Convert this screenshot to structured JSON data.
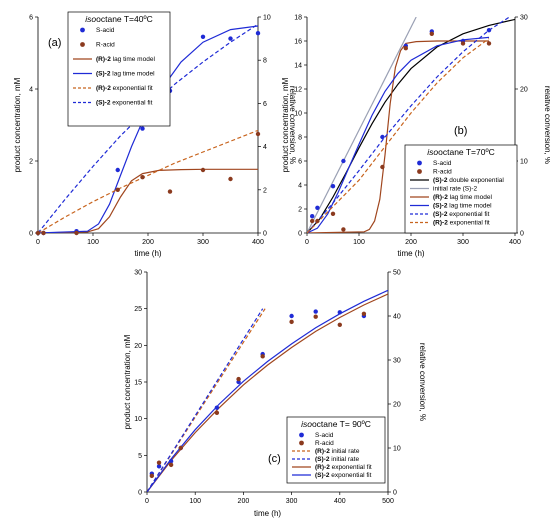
{
  "chart_data": [
    {
      "type": "scatter",
      "panel_label": "(a)",
      "legend": {
        "title_italic": "iso",
        "title_rest": "octane T=40ºC",
        "entries": [
          {
            "label": "S-acid",
            "kind": "point",
            "color": "#1f2bd6"
          },
          {
            "label": "R-acid",
            "kind": "point",
            "color": "#8b3a1e"
          },
          {
            "label_bold": "(R)-2",
            "label": " lag time model",
            "kind": "line",
            "color": "#a0461e",
            "dash": false
          },
          {
            "label_bold": "(S)-2",
            "label": " lag time model",
            "kind": "line",
            "color": "#1f2bd6",
            "dash": false
          },
          {
            "label_bold": "(R)-2",
            "label": " exponential fit",
            "kind": "line",
            "color": "#c8641e",
            "dash": true
          },
          {
            "label_bold": "(S)-2",
            "label": " exponential fit",
            "kind": "line",
            "color": "#1f2bd6",
            "dash": true
          }
        ]
      },
      "xlabel": "time (h)",
      "ylabel": "product concentration, mM",
      "y2label": "relative conversion, %",
      "xlim": [
        0,
        400
      ],
      "ylim": [
        0,
        6
      ],
      "y2lim": [
        0,
        10
      ],
      "xticks": [
        0,
        100,
        200,
        300,
        400
      ],
      "yticks": [
        0,
        2,
        4,
        6
      ],
      "y2ticks": [
        0,
        2,
        4,
        6,
        8,
        10
      ],
      "series": [
        {
          "name": "S-acid",
          "kind": "points",
          "color": "#1f2bd6",
          "x": [
            0,
            10,
            70,
            145,
            190,
            240,
            300,
            350,
            400
          ],
          "y": [
            0,
            0,
            0.05,
            1.75,
            2.9,
            3.95,
            5.45,
            5.4,
            5.55
          ]
        },
        {
          "name": "R-acid",
          "kind": "points",
          "color": "#8b3a1e",
          "x": [
            0,
            10,
            70,
            145,
            190,
            240,
            300,
            350,
            400
          ],
          "y": [
            0,
            0,
            0,
            1.2,
            1.55,
            1.15,
            1.75,
            1.5,
            2.75
          ]
        },
        {
          "name": "(R)-2 lag time model",
          "kind": "line",
          "color": "#a0461e",
          "dash": false,
          "x": [
            0,
            90,
            110,
            130,
            150,
            170,
            190,
            220,
            260,
            300,
            350,
            400
          ],
          "y": [
            0,
            0.03,
            0.12,
            0.45,
            1.0,
            1.45,
            1.65,
            1.74,
            1.76,
            1.77,
            1.77,
            1.77
          ]
        },
        {
          "name": "(S)-2 lag time model",
          "kind": "line",
          "color": "#1f2bd6",
          "dash": false,
          "x": [
            0,
            90,
            110,
            130,
            150,
            170,
            190,
            220,
            260,
            300,
            350,
            400
          ],
          "y": [
            0,
            0.05,
            0.25,
            0.8,
            1.6,
            2.4,
            3.1,
            3.9,
            4.75,
            5.3,
            5.65,
            5.75
          ]
        },
        {
          "name": "(R)-2 exponential fit",
          "kind": "line",
          "color": "#c8641e",
          "dash": true,
          "x": [
            0,
            50,
            100,
            150,
            200,
            250,
            300,
            350,
            400
          ],
          "y": [
            0,
            0.45,
            0.87,
            1.25,
            1.6,
            1.95,
            2.25,
            2.55,
            2.85
          ]
        },
        {
          "name": "(S)-2 exponential fit",
          "kind": "line",
          "color": "#1f2bd6",
          "dash": true,
          "x": [
            0,
            50,
            100,
            150,
            200,
            250,
            300,
            350,
            400
          ],
          "y": [
            0,
            0.95,
            1.85,
            2.7,
            3.45,
            4.15,
            4.75,
            5.3,
            5.8
          ]
        }
      ]
    },
    {
      "type": "scatter",
      "panel_label": "(b)",
      "legend": {
        "title_italic": "iso",
        "title_rest": "octane T=70ºC",
        "entries": [
          {
            "label": "S-acid",
            "kind": "point",
            "color": "#1f2bd6"
          },
          {
            "label": "R-acid",
            "kind": "point",
            "color": "#8b3a1e"
          },
          {
            "label_bold": "(S)-2",
            "label": " double exponential",
            "kind": "line",
            "color": "#000000",
            "dash": false
          },
          {
            "label": "initial rate (S)-2",
            "kind": "line",
            "color": "#9aa0b4",
            "dash": false
          },
          {
            "label_bold": "(R)-2",
            "label": " lag time model",
            "kind": "line",
            "color": "#a0461e",
            "dash": false
          },
          {
            "label_bold": "(S)-2",
            "label": " lag time model",
            "kind": "line",
            "color": "#1f2bd6",
            "dash": false
          },
          {
            "label_bold": "(S)-2",
            "label": " exponential fit",
            "kind": "line",
            "color": "#1f2bd6",
            "dash": true
          },
          {
            "label_bold": "(R)-2",
            "label": " exponential fit",
            "kind": "line",
            "color": "#c8641e",
            "dash": true
          }
        ]
      },
      "xlabel": "time (h)",
      "ylabel": "product concentration, mM",
      "y2label": "relative conversion, %",
      "xlim": [
        0,
        400
      ],
      "ylim": [
        0,
        18
      ],
      "y2lim": [
        0,
        30
      ],
      "xticks": [
        0,
        100,
        200,
        300,
        400
      ],
      "yticks": [
        0,
        2,
        4,
        6,
        8,
        10,
        12,
        14,
        16,
        18
      ],
      "y2ticks": [
        0,
        10,
        20,
        30
      ],
      "series": [
        {
          "name": "S-acid",
          "kind": "points",
          "color": "#1f2bd6",
          "x": [
            10,
            20,
            50,
            70,
            145,
            190,
            240,
            300,
            350
          ],
          "y": [
            1.4,
            2.1,
            3.9,
            6.0,
            8.0,
            15.6,
            16.8,
            16.0,
            16.9
          ]
        },
        {
          "name": "R-acid",
          "kind": "points",
          "color": "#8b3a1e",
          "x": [
            10,
            20,
            50,
            70,
            145,
            190,
            240,
            300,
            350
          ],
          "y": [
            1.0,
            1.0,
            1.6,
            0.3,
            5.5,
            15.4,
            16.6,
            15.8,
            15.8
          ]
        },
        {
          "name": "(S)-2 double exponential",
          "kind": "line",
          "color": "#000000",
          "dash": false,
          "x": [
            0,
            25,
            50,
            75,
            100,
            125,
            150,
            175,
            200,
            250,
            300,
            350,
            400
          ],
          "y": [
            0,
            1.2,
            3.0,
            5.0,
            7.1,
            9.1,
            10.9,
            12.4,
            13.7,
            15.5,
            16.6,
            17.3,
            17.8
          ]
        },
        {
          "name": "initial rate (S)-2",
          "kind": "line",
          "color": "#9aa0b4",
          "dash": false,
          "x": [
            0,
            210
          ],
          "y": [
            0,
            18
          ]
        },
        {
          "name": "(R)-2 lag time model",
          "kind": "line",
          "color": "#a0461e",
          "dash": false,
          "x": [
            0,
            110,
            120,
            130,
            140,
            150,
            160,
            170,
            180,
            190,
            210,
            250,
            350
          ],
          "y": [
            0,
            0.1,
            0.3,
            1.0,
            2.8,
            6.5,
            10.8,
            13.8,
            15.2,
            15.8,
            15.95,
            16.0,
            16.0
          ]
        },
        {
          "name": "(S)-2 lag time model",
          "kind": "line",
          "color": "#1f2bd6",
          "dash": false,
          "x": [
            0,
            20,
            40,
            60,
            80,
            100,
            125,
            150,
            175,
            200,
            250,
            300,
            350
          ],
          "y": [
            0,
            0.4,
            1.6,
            3.4,
            5.4,
            7.4,
            9.8,
            11.8,
            13.3,
            14.4,
            15.6,
            16.1,
            16.3
          ]
        },
        {
          "name": "(S)-2 exponential fit",
          "kind": "line",
          "color": "#1f2bd6",
          "dash": true,
          "x": [
            0,
            50,
            100,
            150,
            200,
            250,
            300,
            350,
            400
          ],
          "y": [
            0,
            2.5,
            5.2,
            8.0,
            10.6,
            13.0,
            15.1,
            16.9,
            18.3
          ]
        },
        {
          "name": "(R)-2 exponential fit",
          "kind": "line",
          "color": "#c8641e",
          "dash": true,
          "x": [
            0,
            50,
            100,
            150,
            200,
            250,
            300,
            350
          ],
          "y": [
            0,
            2.2,
            4.4,
            7.2,
            10.0,
            12.5,
            14.6,
            16.2
          ]
        }
      ]
    },
    {
      "type": "scatter",
      "panel_label": "(c)",
      "legend": {
        "title_italic": "iso",
        "title_rest": "octane T= 90ºC",
        "entries": [
          {
            "label": "S-acid",
            "kind": "point",
            "color": "#1f2bd6"
          },
          {
            "label": "R-acid",
            "kind": "point",
            "color": "#8b3a1e"
          },
          {
            "label_bold": "(R)-2",
            "label": " initial rate",
            "kind": "line",
            "color": "#c8641e",
            "dash": true
          },
          {
            "label_bold": "(S)-2",
            "label": " initial rate",
            "kind": "line",
            "color": "#1f2bd6",
            "dash": true
          },
          {
            "label_bold": "(R)-2",
            "label": " exponential fit",
            "kind": "line",
            "color": "#a0461e",
            "dash": false
          },
          {
            "label_bold": "(S)-2",
            "label": " exponential fit",
            "kind": "line",
            "color": "#1f2bd6",
            "dash": false
          }
        ]
      },
      "xlabel": "time (h)",
      "ylabel": "product concentration, mM",
      "y2label": "relative conversion, %",
      "xlim": [
        0,
        500
      ],
      "ylim": [
        0,
        30
      ],
      "y2lim": [
        0,
        50
      ],
      "xticks": [
        0,
        100,
        200,
        300,
        400,
        500
      ],
      "yticks": [
        0,
        5,
        10,
        15,
        20,
        25,
        30
      ],
      "y2ticks": [
        0,
        10,
        20,
        30,
        40,
        50
      ],
      "series": [
        {
          "name": "S-acid",
          "kind": "points",
          "color": "#1f2bd6",
          "x": [
            10,
            25,
            50,
            70,
            145,
            190,
            240,
            300,
            350,
            400,
            450
          ],
          "y": [
            2.5,
            3.5,
            4.2,
            6.0,
            11.5,
            15.0,
            18.8,
            24.0,
            24.6,
            24.5,
            24.0
          ]
        },
        {
          "name": "R-acid",
          "kind": "points",
          "color": "#8b3a1e",
          "x": [
            10,
            25,
            50,
            70,
            145,
            190,
            240,
            300,
            350,
            400,
            450
          ],
          "y": [
            2.2,
            4.0,
            3.7,
            6.0,
            10.8,
            15.4,
            18.5,
            23.2,
            23.9,
            22.8,
            24.3
          ]
        },
        {
          "name": "(R)-2 initial rate",
          "kind": "line",
          "color": "#c8641e",
          "dash": true,
          "x": [
            0,
            245
          ],
          "y": [
            0,
            25
          ]
        },
        {
          "name": "(S)-2 initial rate",
          "kind": "line",
          "color": "#1f2bd6",
          "dash": true,
          "x": [
            0,
            240
          ],
          "y": [
            0,
            25
          ]
        },
        {
          "name": "(R)-2 exponential fit",
          "kind": "line",
          "color": "#a0461e",
          "dash": false,
          "x": [
            0,
            50,
            100,
            150,
            200,
            250,
            300,
            350,
            400,
            450,
            500
          ],
          "y": [
            0,
            4.3,
            8.1,
            11.5,
            14.6,
            17.3,
            19.7,
            21.9,
            23.8,
            25.5,
            27.0
          ]
        },
        {
          "name": "(S)-2 exponential fit",
          "kind": "line",
          "color": "#1f2bd6",
          "dash": false,
          "x": [
            0,
            50,
            100,
            150,
            200,
            250,
            300,
            350,
            400,
            450,
            500
          ],
          "y": [
            0,
            4.5,
            8.5,
            12.0,
            15.1,
            17.8,
            20.2,
            22.4,
            24.3,
            26.0,
            27.5
          ]
        }
      ]
    }
  ]
}
